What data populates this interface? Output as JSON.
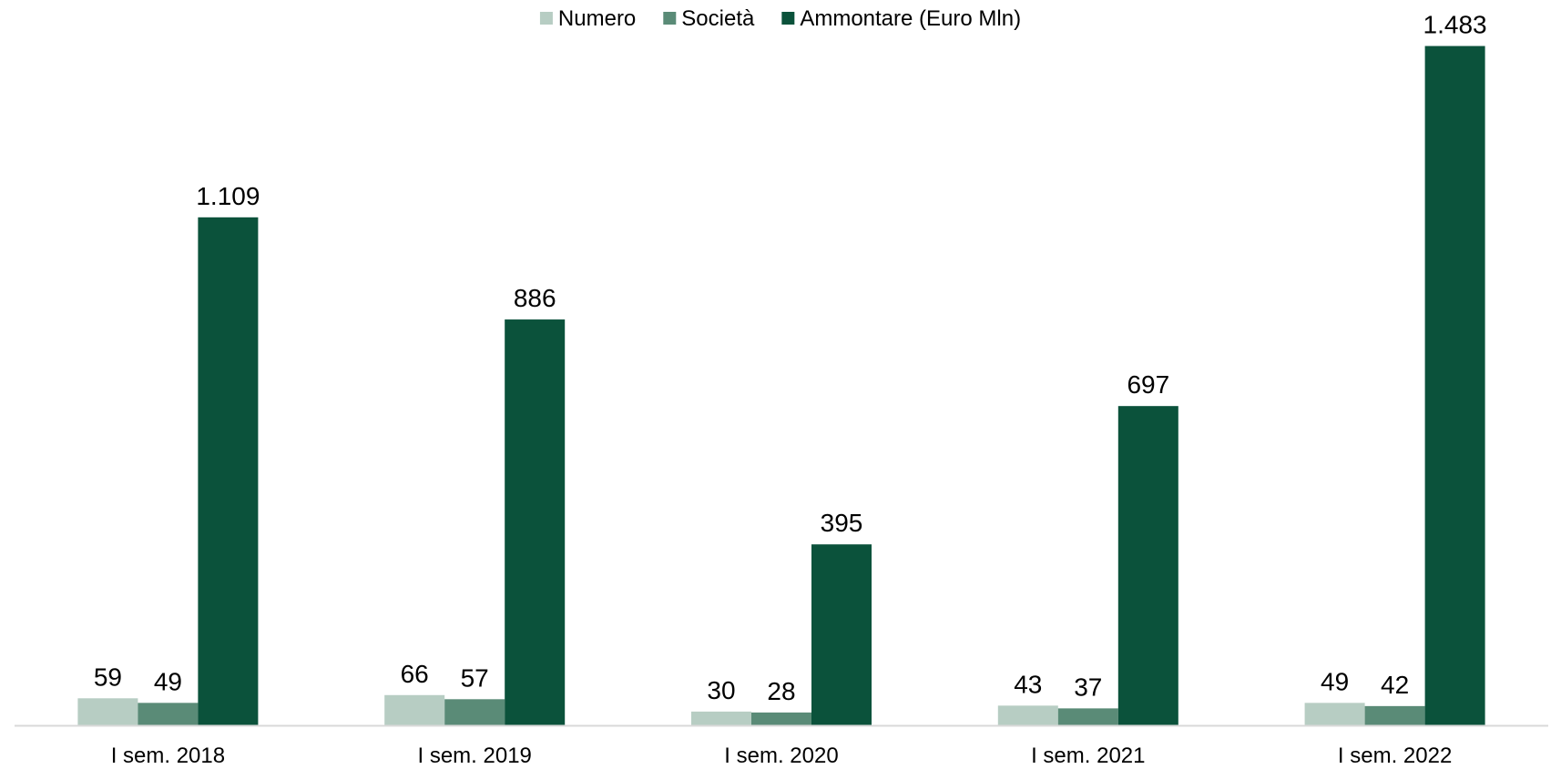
{
  "chart_data": {
    "type": "bar",
    "title": "",
    "xlabel": "",
    "ylabel": "",
    "categories": [
      "I sem. 2018",
      "I sem. 2019",
      "I sem. 2020",
      "I sem. 2021",
      "I sem. 2022"
    ],
    "series": [
      {
        "name": "Numero",
        "color": "#b7cdc3",
        "values": [
          59,
          66,
          30,
          43,
          49
        ],
        "labels": [
          "59",
          "66",
          "30",
          "43",
          "49"
        ]
      },
      {
        "name": "Società",
        "color": "#5a8b77",
        "values": [
          49,
          57,
          28,
          37,
          42
        ],
        "labels": [
          "49",
          "57",
          "28",
          "37",
          "42"
        ]
      },
      {
        "name": "Ammontare (Euro Mln)",
        "color": "#0b523b",
        "values": [
          1109,
          886,
          395,
          697,
          1483
        ],
        "labels": [
          "1.109",
          "886",
          "395",
          "697",
          "1.483"
        ]
      }
    ],
    "ylim": [
      0,
      1500
    ],
    "grid": false,
    "legend_position": "top-center",
    "axis_color": "#d9d9d9"
  }
}
